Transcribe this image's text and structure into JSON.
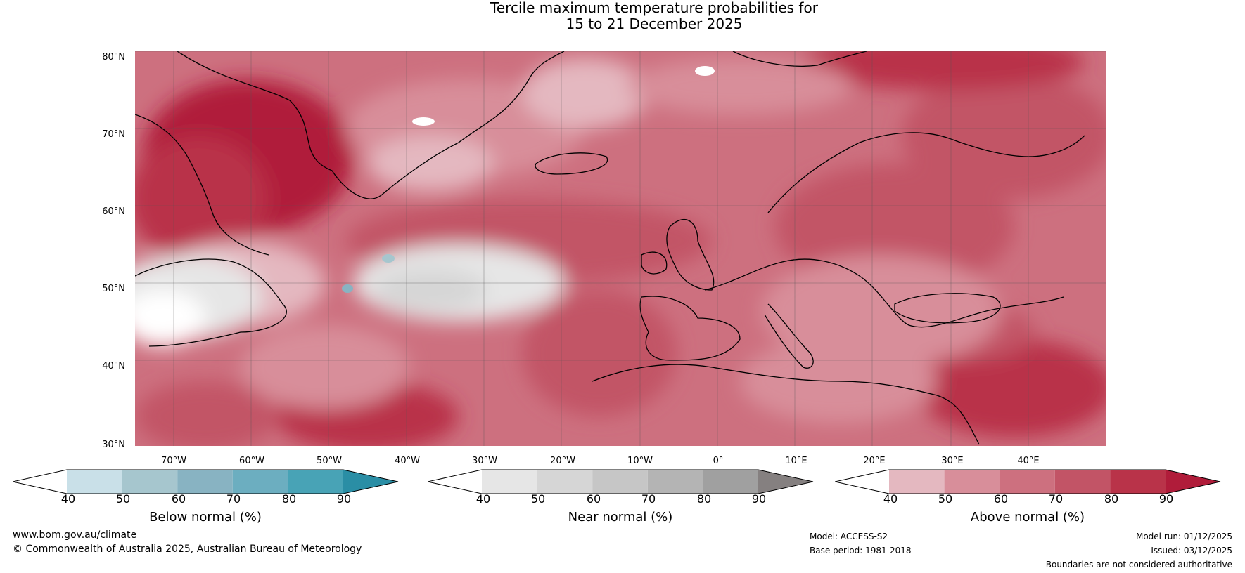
{
  "title_line1": "Tercile maximum temperature probabilities for",
  "title_line2": "15 to 21 December 2025",
  "lat_labels": [
    "80°N",
    "70°N",
    "60°N",
    "50°N",
    "40°N",
    "30°N"
  ],
  "lon_labels": [
    "70°W",
    "60°W",
    "50°W",
    "40°W",
    "30°W",
    "20°W",
    "10°W",
    "0°",
    "10°E",
    "20°E",
    "30°E",
    "40°E"
  ],
  "colorbars": [
    {
      "label": "Below normal (%)",
      "ticks": [
        "40",
        "50",
        "60",
        "70",
        "80",
        "90"
      ],
      "colors": [
        "#ffffff",
        "#c9e0e8",
        "#a6c6ce",
        "#88b3c2",
        "#6caec0",
        "#48a3b6",
        "#2a8ea5"
      ]
    },
    {
      "label": "Near normal (%)",
      "ticks": [
        "40",
        "50",
        "60",
        "70",
        "80",
        "90"
      ],
      "colors": [
        "#ffffff",
        "#e6e6e6",
        "#d6d6d6",
        "#c6c6c6",
        "#b4b4b4",
        "#a0a0a0",
        "#858080"
      ]
    },
    {
      "label": "Above normal (%)",
      "ticks": [
        "40",
        "50",
        "60",
        "70",
        "80",
        "90"
      ],
      "colors": [
        "#ffffff",
        "#e4b8c0",
        "#d88e9a",
        "#cd707f",
        "#c25466",
        "#b93349",
        "#b01c3a"
      ]
    }
  ],
  "footer": {
    "website": "www.bom.gov.au/climate",
    "copyright": "© Commonwealth of Australia 2025, Australian Bureau of Meteorology",
    "model": "Model: ACCESS-S2",
    "base_period": "Base period: 1981-2018",
    "model_run": "Model run: 01/12/2025",
    "issued": "Issued: 03/12/2025",
    "disclaimer": "Boundaries are not considered authoritative"
  }
}
